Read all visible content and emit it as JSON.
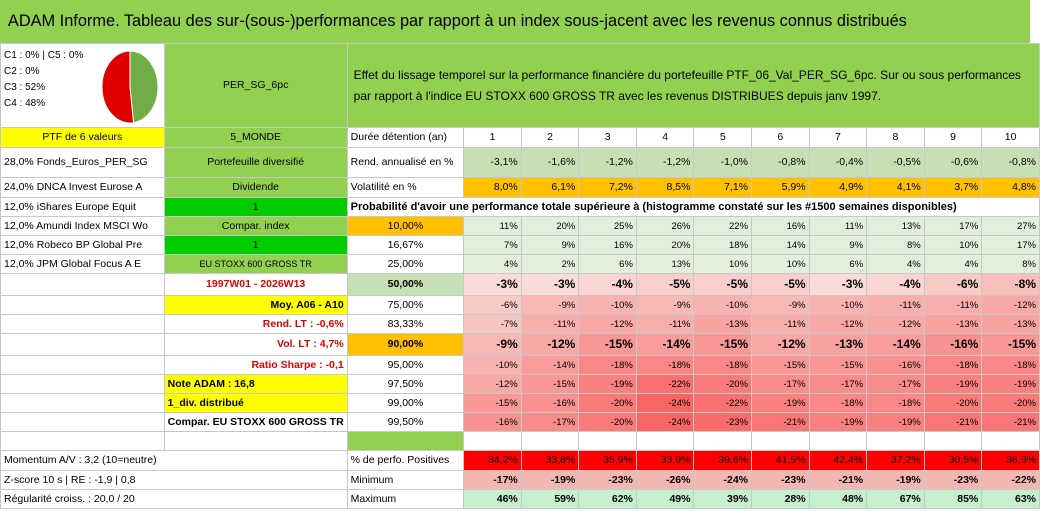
{
  "title": "ADAM Informe. Tableau des sur-(sous-)performances par rapport à un index sous-jacent avec les revenus connus distribués",
  "header": {
    "c_lines": [
      "C1 : 0% | C5 : 0%",
      "C2 : 0%",
      "C3 : 52%",
      "C4 : 48%"
    ],
    "portfolio_name": "PER_SG_6pc",
    "description": "Effet du lissage temporel sur la performance financière du portefeuille PTF_06_Val_PER_SG_6pc. Sur ou sous performances par rapport à l'indice EU STOXX 600 GROSS TR avec les revenus DISTRIBUES depuis janv 1997.",
    "ptf_label": "PTF de 6 valeurs",
    "zone": "5_MONDE",
    "duration_label": "Durée détention (an)",
    "years": [
      "1",
      "2",
      "3",
      "4",
      "5",
      "6",
      "7",
      "8",
      "9",
      "10"
    ]
  },
  "pie": {
    "c3": 52,
    "c4": 48,
    "colors": {
      "c3": "#e00000",
      "c4": "#70ad47"
    }
  },
  "holdings": [
    "28,0% Fonds_Euros_PER_SG",
    "24,0% DNCA Invest Eurose A",
    "12,0% iShares Europe Equit",
    "12,0% Amundi Index MSCI Wo",
    "12,0% Robeco BP Global Pre",
    "12,0% JPM Global Focus A E"
  ],
  "info": {
    "portfolio_type": "Portefeuille diversifié",
    "dividend": "Dividende",
    "one_a": "1",
    "compar_index": "Compar. index",
    "one_b": "1",
    "index_name": "EU STOXX 600 GROSS TR",
    "period": "1997W01 - 2026W13",
    "moy": "Moy. A06 - A10",
    "rend_lt": "Rend. LT : -0,6%",
    "vol_lt": "Vol. LT : 4,7%",
    "sharpe": "Ratio Sharpe : -0,1",
    "note": "Note ADAM : 16,8",
    "div": "1_div. distribué",
    "compar_full": "Compar. EU STOXX 600 GROSS TR",
    "momentum": "Momentum A/V : 3,2 (10=neutre)",
    "zscore": "Z-score 10 s | RE : -1,9 | 0,8",
    "regularite": "Régularité croiss. : 20,0 / 20"
  },
  "rend": {
    "label": "Rend. annualisé en %",
    "values": [
      "-3,1%",
      "-1,6%",
      "-1,2%",
      "-1,2%",
      "-1,0%",
      "-0,8%",
      "-0,4%",
      "-0,5%",
      "-0,6%",
      "-0,8%"
    ]
  },
  "vol": {
    "label": "Volatilité en %",
    "values": [
      "8,0%",
      "6,1%",
      "7,2%",
      "8,5%",
      "7,1%",
      "5,9%",
      "4,9%",
      "4,1%",
      "3,7%",
      "4,8%"
    ]
  },
  "prob_label": "Probabilité d'avoir une performance totale supérieure à (histogramme constaté sur les #1500 semaines disponibles)",
  "quantiles": [
    {
      "q": "10,00%",
      "values": [
        "11%",
        "20%",
        "25%",
        "26%",
        "22%",
        "16%",
        "11%",
        "13%",
        "17%",
        "27%"
      ]
    },
    {
      "q": "16,67%",
      "values": [
        "7%",
        "9%",
        "16%",
        "20%",
        "18%",
        "14%",
        "9%",
        "8%",
        "10%",
        "17%"
      ]
    },
    {
      "q": "25,00%",
      "values": [
        "4%",
        "2%",
        "6%",
        "13%",
        "10%",
        "10%",
        "6%",
        "4%",
        "4%",
        "8%"
      ]
    },
    {
      "q": "50,00%",
      "values": [
        "-3%",
        "-3%",
        "-4%",
        "-5%",
        "-5%",
        "-5%",
        "-3%",
        "-4%",
        "-6%",
        "-8%"
      ]
    },
    {
      "q": "75,00%",
      "values": [
        "-6%",
        "-9%",
        "-10%",
        "-9%",
        "-10%",
        "-9%",
        "-10%",
        "-11%",
        "-11%",
        "-12%"
      ]
    },
    {
      "q": "83,33%",
      "values": [
        "-7%",
        "-11%",
        "-12%",
        "-11%",
        "-13%",
        "-11%",
        "-12%",
        "-12%",
        "-13%",
        "-13%"
      ]
    },
    {
      "q": "90,00%",
      "values": [
        "-9%",
        "-12%",
        "-15%",
        "-14%",
        "-15%",
        "-12%",
        "-13%",
        "-14%",
        "-16%",
        "-15%"
      ]
    },
    {
      "q": "95,00%",
      "values": [
        "-10%",
        "-14%",
        "-18%",
        "-18%",
        "-18%",
        "-15%",
        "-15%",
        "-16%",
        "-18%",
        "-18%"
      ]
    },
    {
      "q": "97,50%",
      "values": [
        "-12%",
        "-15%",
        "-19%",
        "-22%",
        "-20%",
        "-17%",
        "-17%",
        "-17%",
        "-19%",
        "-19%"
      ]
    },
    {
      "q": "99,00%",
      "values": [
        "-15%",
        "-16%",
        "-20%",
        "-24%",
        "-22%",
        "-19%",
        "-18%",
        "-18%",
        "-20%",
        "-20%"
      ]
    },
    {
      "q": "99,50%",
      "values": [
        "-16%",
        "-17%",
        "-20%",
        "-24%",
        "-23%",
        "-21%",
        "-19%",
        "-19%",
        "-21%",
        "-21%"
      ]
    }
  ],
  "positives": {
    "label": "% de perfo. Positives",
    "values": [
      "34,2%",
      "33,8%",
      "35,9%",
      "33,9%",
      "39,6%",
      "41,5%",
      "42,4%",
      "37,2%",
      "30,5%",
      "36,3%"
    ]
  },
  "minimum": {
    "label": "Minimum",
    "values": [
      "-17%",
      "-19%",
      "-23%",
      "-26%",
      "-24%",
      "-23%",
      "-21%",
      "-19%",
      "-23%",
      "-22%"
    ]
  },
  "maximum": {
    "label": "Maximum",
    "values": [
      "46%",
      "59%",
      "62%",
      "49%",
      "39%",
      "28%",
      "48%",
      "67%",
      "85%",
      "63%"
    ]
  }
}
